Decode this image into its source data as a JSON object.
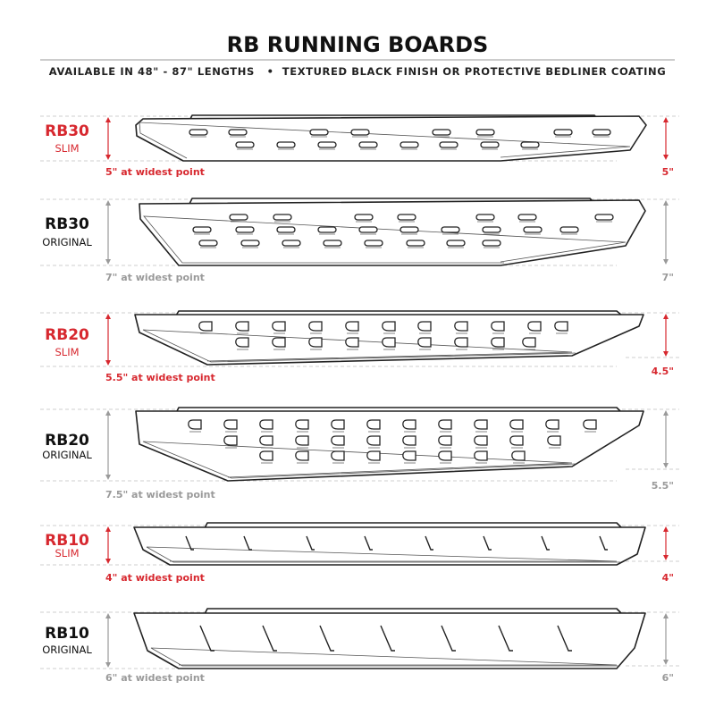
{
  "header": {
    "title": "RB RUNNING BOARDS",
    "subtitle": "AVAILABLE IN 48\" - 87\" LENGTHS   •  TEXTURED BLACK FINISH OR PROTECTIVE BEDLINER COATING"
  },
  "colors": {
    "accent_red": "#d7282f",
    "gray": "#9a9a9a",
    "black": "#111111"
  },
  "boards": [
    {
      "model": "RB30",
      "variant": "SLIM",
      "caption": "5\" at widest point",
      "right_dim": "5\"",
      "style": "red"
    },
    {
      "model": "RB30",
      "variant": "ORIGINAL",
      "caption": "7\" at widest point",
      "right_dim": "7\"",
      "style": "gray"
    },
    {
      "model": "RB20",
      "variant": "SLIM",
      "caption": "5.5\" at widest point",
      "right_dim": "4.5\"",
      "style": "red"
    },
    {
      "model": "RB20",
      "variant": "ORIGINAL",
      "caption": "7.5\" at widest point",
      "right_dim": "5.5\"",
      "style": "gray"
    },
    {
      "model": "RB10",
      "variant": "SLIM",
      "caption": "4\" at widest point",
      "right_dim": "4\"",
      "style": "red"
    },
    {
      "model": "RB10",
      "variant": "ORIGINAL",
      "caption": "6\" at widest point",
      "right_dim": "6\"",
      "style": "gray"
    }
  ]
}
